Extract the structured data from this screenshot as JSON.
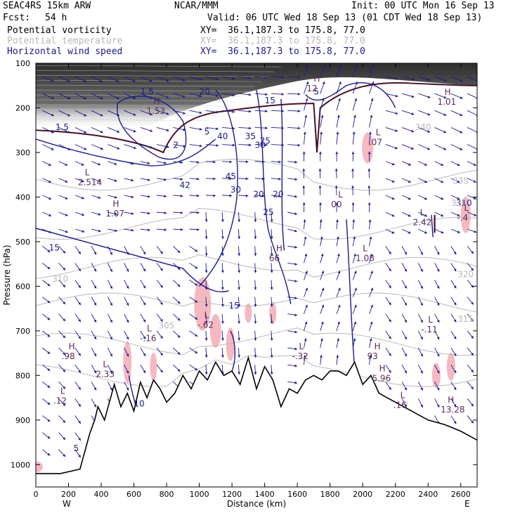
{
  "header": {
    "model": "SEAC4RS 15km ARW",
    "org": "NCAR/MMM",
    "init": "Init: 00 UTC Mon 16 Sep 13",
    "fcst_label": "Fcst:",
    "fcst_value": "54 h",
    "valid": "Valid: 06 UTC Wed 18 Sep 13 (01 CDT Wed 18 Sep 13)"
  },
  "fields": [
    {
      "name": "Potential vorticity",
      "xy": "XY=  36.1,187.3 to 175.8, 77.0",
      "color": "#000000"
    },
    {
      "name": "Potential temperature",
      "xy": "XY=  36.1,187.3 to 175.8, 77.0",
      "color": "#b8b8b8"
    },
    {
      "name": "Horizontal wind speed",
      "xy": "XY=  36.1,187.3 to 175.8, 77.0",
      "color": "#1a1a8c"
    }
  ],
  "chart_data": {
    "type": "cross-section",
    "xlabel": "Distance (km)",
    "ylabel": "Pressure (hPa)",
    "xlim": [
      0,
      2700
    ],
    "ylim": [
      1050,
      100
    ],
    "x_ticks": [
      "0",
      "200",
      "400",
      "600",
      "800",
      "1000",
      "1200",
      "1400",
      "1600",
      "1800",
      "2000",
      "2200",
      "2400",
      "2600"
    ],
    "y_ticks": [
      "100",
      "200",
      "300",
      "400",
      "500",
      "600",
      "700",
      "800",
      "900",
      "1000"
    ],
    "x_end_labels": {
      "left": "W",
      "right": "E"
    },
    "terrain": {
      "x": [
        0,
        150,
        270,
        330,
        360,
        380,
        420,
        450,
        480,
        520,
        560,
        600,
        640,
        680,
        720,
        760,
        800,
        850,
        900,
        950,
        1000,
        1050,
        1100,
        1150,
        1200,
        1250,
        1300,
        1350,
        1400,
        1450,
        1500,
        1550,
        1600,
        1650,
        1700,
        1750,
        1800,
        1850,
        1900,
        1950,
        2000,
        2050,
        2100,
        2150,
        2200,
        2300,
        2400,
        2500,
        2600,
        2700
      ],
      "p": [
        1020,
        1020,
        1010,
        930,
        900,
        870,
        900,
        860,
        820,
        870,
        840,
        880,
        815,
        850,
        810,
        830,
        860,
        840,
        800,
        830,
        790,
        810,
        770,
        800,
        790,
        820,
        760,
        830,
        780,
        810,
        870,
        830,
        840,
        810,
        800,
        810,
        790,
        790,
        800,
        770,
        820,
        800,
        840,
        850,
        860,
        880,
        900,
        910,
        925,
        945
      ]
    },
    "wind_speed_labels": [
      "15",
      "20",
      "25",
      "30",
      "35",
      "40",
      "45",
      "25",
      "30",
      "20",
      "15",
      "10",
      "5",
      "1.5",
      "1.5",
      "5",
      "2",
      "42",
      "20",
      "15",
      "310",
      "5"
    ],
    "potential_temperature_labels": [
      "340",
      "335",
      "310",
      "320",
      "315",
      "305",
      "310"
    ],
    "highs": [
      {
        "value": "1.07",
        "x": 470,
        "p": 440,
        "label": "H"
      },
      {
        "value": ".98",
        "x": 200,
        "p": 760,
        "label": "H"
      },
      {
        "value": "66",
        "x": 1470,
        "p": 540,
        "label": "H"
      },
      {
        "value": "93",
        "x": 2070,
        "p": 760,
        "label": "H"
      },
      {
        "value": "5.96",
        "x": 2100,
        "p": 810,
        "label": "H"
      },
      {
        "value": "13.28",
        "x": 2520,
        "p": 880,
        "label": "H"
      },
      {
        "value": "1.01",
        "x": 2500,
        "p": 190,
        "label": "H"
      },
      {
        "value": "12",
        "x": 1700,
        "p": 160,
        "label": "H"
      },
      {
        "value": "1.53",
        "x": 720,
        "p": 210,
        "label": "H"
      }
    ],
    "lows": [
      {
        "value": "2.514",
        "x": 300,
        "p": 370,
        "label": "L"
      },
      {
        "value": ".12",
        "x": 150,
        "p": 860,
        "label": "L"
      },
      {
        "value": "2.33",
        "x": 410,
        "p": 800,
        "label": "L"
      },
      {
        "value": "-.16",
        "x": 680,
        "p": 720,
        "label": "L"
      },
      {
        "value": "-.62",
        "x": 1030,
        "p": 690,
        "label": "L"
      },
      {
        "value": "-.32",
        "x": 1610,
        "p": 760,
        "label": "L"
      },
      {
        "value": "00",
        "x": 1850,
        "p": 420,
        "label": "L"
      },
      {
        "value": "1.08",
        "x": 2000,
        "p": 540,
        "label": "L"
      },
      {
        "value": "2.42",
        "x": 2350,
        "p": 460,
        "label": "L"
      },
      {
        "value": "-.11",
        "x": 2400,
        "p": 700,
        "label": "L"
      },
      {
        "value": ".07",
        "x": 2080,
        "p": 280,
        "label": "L"
      },
      {
        "value": "-.4",
        "x": 2620,
        "p": 450,
        "label": "L"
      },
      {
        "value": ".16",
        "x": 2230,
        "p": 870,
        "label": "L"
      }
    ],
    "colors": {
      "wind_speed": "#1a1a8c",
      "potential_temperature": "#b8b8b8",
      "potential_vorticity_contour": "#4a0f2a",
      "pv_shading_dark": "#3a3a3a",
      "pv_positive_shading": "#f6b8c0",
      "terrain": "#000000"
    }
  }
}
